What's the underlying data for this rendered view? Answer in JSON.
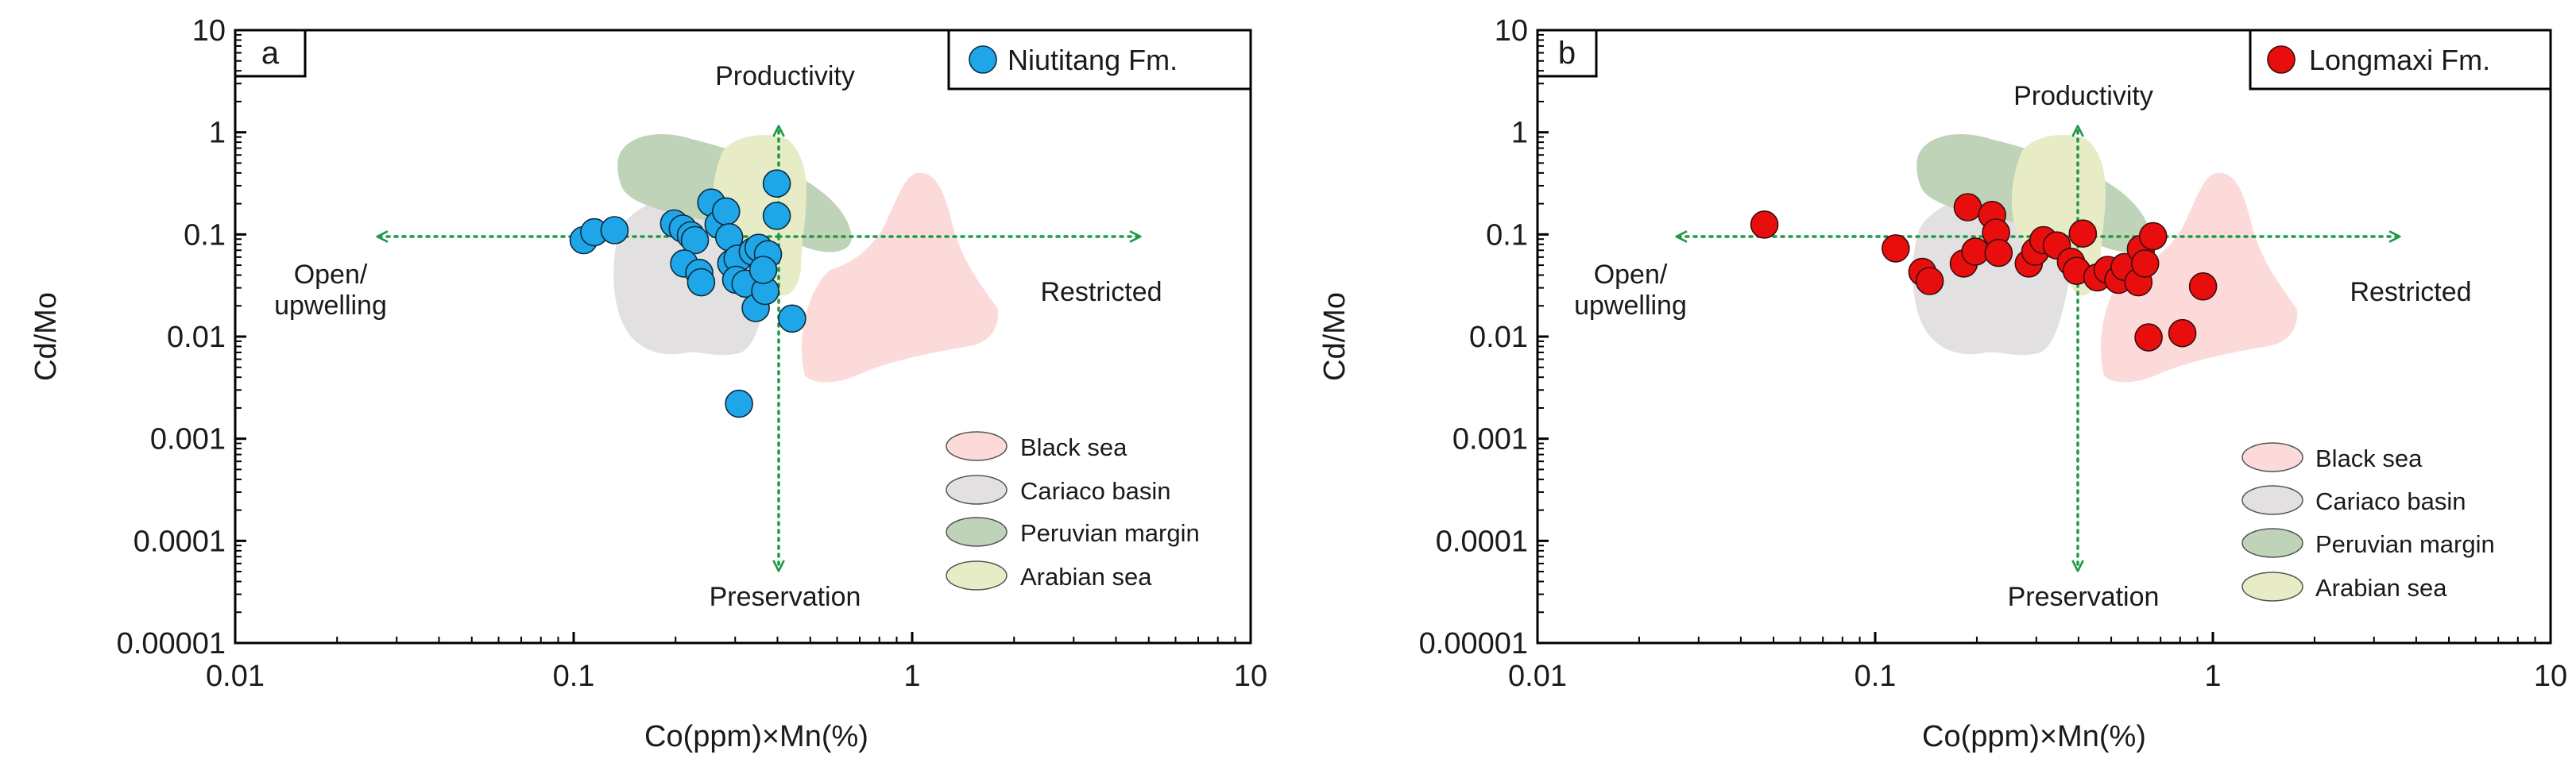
{
  "colors": {
    "black_sea": "#fcdada",
    "cariaco_basin": "#e3e0e1",
    "peruvian_margin": "#bed3b7",
    "arabian_sea": "#e7ebc6",
    "arrow_green": "#1f9a46",
    "niutitang_marker": "#1fa6e8",
    "longmaxi_marker": "#e90e0e"
  },
  "chart_data": [
    {
      "type": "scatter",
      "panel_label": "a",
      "xlabel": "Co(ppm)×Mn(%)",
      "ylabel": "Cd/Mo",
      "x_scale": "log",
      "y_scale": "log",
      "xlim": [
        0.01,
        10
      ],
      "ylim": [
        1e-05,
        10
      ],
      "x_ticks": [
        "0.01",
        "0.1",
        "1",
        "10"
      ],
      "y_ticks": [
        "0.00001",
        "0.0001",
        "0.001",
        "0.01",
        "0.1",
        "1",
        "10"
      ],
      "legend_position": "top-right",
      "arrow_labels": {
        "up": "Productivity",
        "down": "Preservation",
        "left": "Open/\nupwelling",
        "right": "Restricted"
      },
      "region_legend": [
        "Black sea",
        "Cariaco basin",
        "Peruvian margin",
        "Arabian sea"
      ],
      "series": [
        {
          "name": "Niutitang Fm.",
          "points": [
            [
              0.107,
              0.088
            ],
            [
              0.115,
              0.105
            ],
            [
              0.132,
              0.11
            ],
            [
              0.198,
              0.128
            ],
            [
              0.21,
              0.114
            ],
            [
              0.222,
              0.098
            ],
            [
              0.228,
              0.088
            ],
            [
              0.212,
              0.052
            ],
            [
              0.235,
              0.042
            ],
            [
              0.238,
              0.034
            ],
            [
              0.255,
              0.205
            ],
            [
              0.268,
              0.125
            ],
            [
              0.282,
              0.168
            ],
            [
              0.288,
              0.094
            ],
            [
              0.292,
              0.052
            ],
            [
              0.305,
              0.058
            ],
            [
              0.302,
              0.036
            ],
            [
              0.322,
              0.033
            ],
            [
              0.338,
              0.068
            ],
            [
              0.352,
              0.074
            ],
            [
              0.345,
              0.019
            ],
            [
              0.368,
              0.028
            ],
            [
              0.375,
              0.064
            ],
            [
              0.363,
              0.045
            ],
            [
              0.398,
              0.315
            ],
            [
              0.398,
              0.152
            ],
            [
              0.442,
              0.015
            ],
            [
              0.308,
              0.0022
            ]
          ]
        }
      ]
    },
    {
      "type": "scatter",
      "panel_label": "b",
      "xlabel": "Co(ppm)×Mn(%)",
      "ylabel": "Cd/Mo",
      "x_scale": "log",
      "y_scale": "log",
      "xlim": [
        0.01,
        10
      ],
      "ylim": [
        1e-05,
        10
      ],
      "x_ticks": [
        "0.01",
        "0.1",
        "1",
        "10"
      ],
      "y_ticks": [
        "0.00001",
        "0.0001",
        "0.001",
        "0.01",
        "0.1",
        "1",
        "10"
      ],
      "legend_position": "top-right",
      "arrow_labels": {
        "up": "Productivity",
        "down": "Preservation",
        "left": "Open/\nupwelling",
        "right": "Restricted"
      },
      "region_legend": [
        "Black sea",
        "Cariaco basin",
        "Peruvian margin",
        "Arabian sea"
      ],
      "series": [
        {
          "name": "Longmaxi Fm.",
          "points": [
            [
              0.047,
              0.125
            ],
            [
              0.115,
              0.073
            ],
            [
              0.138,
              0.043
            ],
            [
              0.145,
              0.035
            ],
            [
              0.183,
              0.052
            ],
            [
              0.188,
              0.185
            ],
            [
              0.198,
              0.068
            ],
            [
              0.222,
              0.155
            ],
            [
              0.228,
              0.104
            ],
            [
              0.232,
              0.066
            ],
            [
              0.285,
              0.052
            ],
            [
              0.298,
              0.068
            ],
            [
              0.315,
              0.088
            ],
            [
              0.345,
              0.078
            ],
            [
              0.38,
              0.054
            ],
            [
              0.395,
              0.044
            ],
            [
              0.412,
              0.102
            ],
            [
              0.455,
              0.038
            ],
            [
              0.488,
              0.045
            ],
            [
              0.525,
              0.036
            ],
            [
              0.548,
              0.048
            ],
            [
              0.602,
              0.034
            ],
            [
              0.612,
              0.072
            ],
            [
              0.63,
              0.052
            ],
            [
              0.665,
              0.096
            ],
            [
              0.645,
              0.0098
            ],
            [
              0.812,
              0.0108
            ],
            [
              0.935,
              0.031
            ]
          ]
        }
      ]
    }
  ]
}
